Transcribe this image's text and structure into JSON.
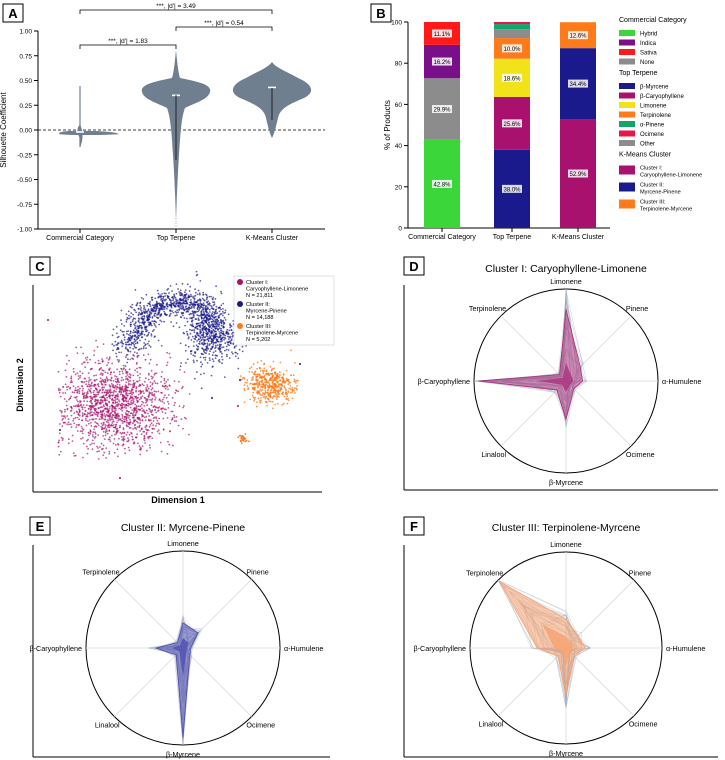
{
  "panel_letters": [
    "A",
    "B",
    "C",
    "D",
    "E",
    "F"
  ],
  "colors": {
    "violin": "#6f7f8f",
    "hybrid": "#3ad63a",
    "indica": "#7a0f8a",
    "sativa": "#ff1a1a",
    "none": "#8c8c8c",
    "myrcene": "#1a1a8c",
    "caryophyllene": "#a8126e",
    "limonene": "#f2e21a",
    "terpinolene": "#ff7a1a",
    "pinene": "#15a56a",
    "ocimene": "#e8174a",
    "other": "#8c8c8c",
    "c1": "#a8126e",
    "c2": "#1a1a8c",
    "c3": "#ff7a1a",
    "radar1": "#a8307a",
    "radar2": "#4b4bb0",
    "radar3": "#f5a06e"
  },
  "chart_data": [
    {
      "id": "A",
      "type": "violin",
      "ylabel": "Silhouette Coefficient",
      "ylim": [
        -1.0,
        1.0
      ],
      "yticks": [
        "1.00",
        "0.75",
        "0.50",
        "0.25",
        "0.00",
        "-0.25",
        "-0.50",
        "-0.75",
        "-1.00"
      ],
      "categories": [
        "Commercial Category",
        "Top Terpene",
        "K-Means Cluster"
      ],
      "medians": [
        -0.02,
        0.35,
        0.43
      ],
      "comparisons": [
        {
          "pair": [
            0,
            1
          ],
          "label": "***, |d'| = 1.83"
        },
        {
          "pair": [
            0,
            2
          ],
          "label": "***, |d'| = 3.49"
        },
        {
          "pair": [
            1,
            2
          ],
          "label": "***, |d'| = 0.54"
        }
      ]
    },
    {
      "id": "B",
      "type": "bar",
      "stacked": true,
      "ylabel": "% of Products",
      "ylim": [
        0,
        100
      ],
      "yticks": [
        "0",
        "20",
        "40",
        "60",
        "80",
        "100"
      ],
      "categories": [
        "Commercial Category",
        "Top Terpene",
        "K-Means Cluster"
      ],
      "bars": [
        {
          "segments": [
            {
              "key": "hybrid",
              "value": 42.8,
              "label": "42.8%"
            },
            {
              "key": "none",
              "value": 29.9,
              "label": "29.9%"
            },
            {
              "key": "indica",
              "value": 16.2,
              "label": "16.2%"
            },
            {
              "key": "sativa",
              "value": 11.1,
              "label": "11.1%"
            }
          ]
        },
        {
          "segments": [
            {
              "key": "myrcene",
              "value": 38.0,
              "label": "38.0%"
            },
            {
              "key": "caryophyllene",
              "value": 25.6,
              "label": "25.6%"
            },
            {
              "key": "limonene",
              "value": 18.6,
              "label": "18.6%"
            },
            {
              "key": "terpinolene",
              "value": 10.0,
              "label": "10.0%"
            },
            {
              "key": "other",
              "value": 4.3,
              "label": ""
            },
            {
              "key": "pinene",
              "value": 2.5,
              "label": ""
            },
            {
              "key": "ocimene",
              "value": 1.0,
              "label": ""
            }
          ]
        },
        {
          "segments": [
            {
              "key": "c1",
              "value": 52.9,
              "label": "52.9%"
            },
            {
              "key": "c2",
              "value": 34.4,
              "label": "34.4%"
            },
            {
              "key": "c3",
              "value": 12.6,
              "label": "12.6%"
            }
          ]
        }
      ],
      "legend": {
        "groups": [
          {
            "title": "Commercial Category",
            "items": [
              {
                "key": "hybrid",
                "label": "Hybrid"
              },
              {
                "key": "indica",
                "label": "Indica"
              },
              {
                "key": "sativa",
                "label": "Sativa"
              },
              {
                "key": "none",
                "label": "None"
              }
            ]
          },
          {
            "title": "Top Terpene",
            "items": [
              {
                "key": "myrcene",
                "label": "β-Myrcene"
              },
              {
                "key": "caryophyllene",
                "label": "β-Caryophyllene"
              },
              {
                "key": "limonene",
                "label": "Limonene"
              },
              {
                "key": "terpinolene",
                "label": "Terpinolene"
              },
              {
                "key": "pinene",
                "label": "α-Pinene"
              },
              {
                "key": "ocimene",
                "label": "Ocimene"
              },
              {
                "key": "other",
                "label": "Other"
              }
            ]
          },
          {
            "title": "K-Means Cluster",
            "items": [
              {
                "key": "c1",
                "lines": [
                  "Cluster I:",
                  "Caryophyllene-Limonene"
                ]
              },
              {
                "key": "c2",
                "lines": [
                  "Cluster II:",
                  "Myrcene-Pinene"
                ]
              },
              {
                "key": "c3",
                "lines": [
                  "Cluster III:",
                  "Terpinolene-Myrcene"
                ]
              }
            ]
          }
        ]
      }
    },
    {
      "id": "C",
      "type": "scatter",
      "xlabel": "Dimension 1",
      "ylabel": "Dimension 2",
      "legend": [
        {
          "key": "c1",
          "lines": [
            "Cluster I:",
            "Caryophyllene-Limonene",
            "N = 21,811"
          ]
        },
        {
          "key": "c2",
          "lines": [
            "Cluster II:",
            "Myrcene-Pinene",
            "N = 14,188"
          ]
        },
        {
          "key": "c3",
          "lines": [
            "Cluster III:",
            "Terpinolene-Myrcene",
            "N = 5,202"
          ]
        }
      ]
    },
    {
      "id": "D",
      "type": "radar",
      "title": "Cluster I: Caryophyllene-Limonene",
      "axes": [
        "Limonene",
        "Pinene",
        "α-Humulene",
        "Ocimene",
        "β-Myrcene",
        "Linalool",
        "β-Caryophyllene",
        "Terpinolene"
      ],
      "fill_outline": [
        0.78,
        0.22,
        0.18,
        0.12,
        0.42,
        0.14,
        0.95,
        0.1
      ],
      "fill_inner": [
        0.2,
        0.08,
        0.08,
        0.06,
        0.12,
        0.06,
        0.3,
        0.05
      ],
      "color_key": "radar1"
    },
    {
      "id": "E",
      "type": "radar",
      "title": "Cluster II: Myrcene-Pinene",
      "axes": [
        "Limonene",
        "Pinene",
        "α-Humulene",
        "Ocimene",
        "β-Myrcene",
        "Linalool",
        "β-Caryophyllene",
        "Terpinolene"
      ],
      "fill_outline": [
        0.26,
        0.22,
        0.08,
        0.1,
        0.92,
        0.1,
        0.28,
        0.08
      ],
      "fill_inner": [
        0.1,
        0.08,
        0.04,
        0.05,
        0.3,
        0.05,
        0.12,
        0.04
      ],
      "color_key": "radar2"
    },
    {
      "id": "F",
      "type": "radar",
      "title": "Cluster III: Terpinolene-Myrcene",
      "axes": [
        "Limonene",
        "Pinene",
        "α-Humulene",
        "Ocimene",
        "β-Myrcene",
        "Linalool",
        "β-Caryophyllene",
        "Terpinolene"
      ],
      "fill_outline": [
        0.3,
        0.18,
        0.2,
        0.12,
        0.5,
        0.12,
        0.3,
        0.98
      ],
      "fill_inner": [
        0.12,
        0.08,
        0.08,
        0.06,
        0.2,
        0.06,
        0.12,
        0.35
      ],
      "color_key": "radar3"
    }
  ]
}
